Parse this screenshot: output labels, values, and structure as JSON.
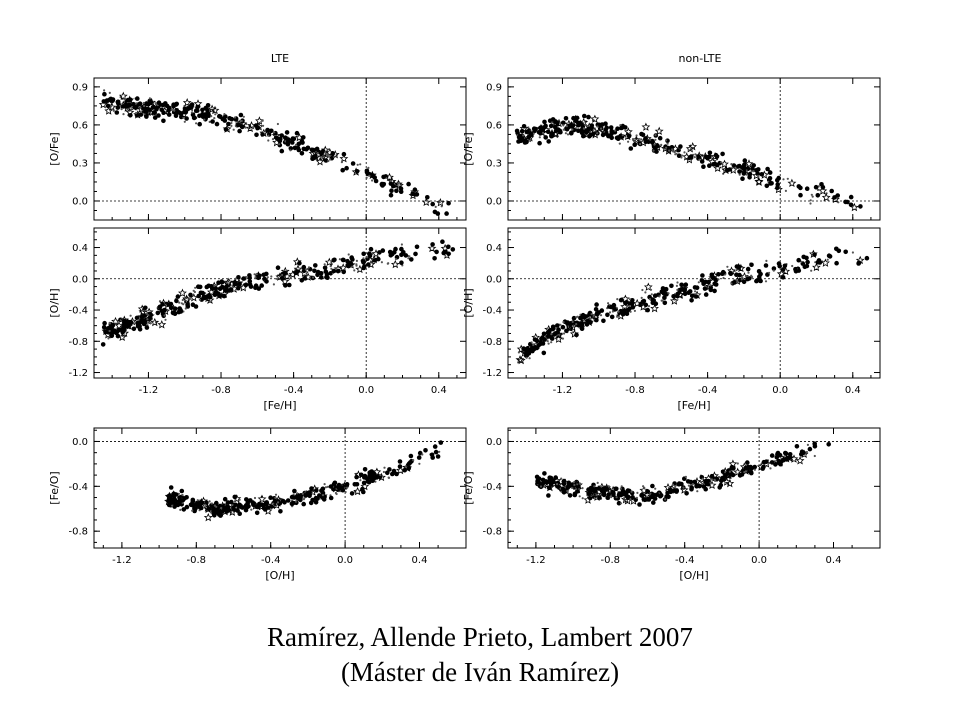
{
  "caption": {
    "line1": "Ramírez, Allende Prieto, Lambert 2007",
    "line2": "(Máster de Iván Ramírez)"
  },
  "columns": [
    "LTE",
    "non-LTE"
  ],
  "chart_data": [
    {
      "type": "scatter",
      "column": "LTE",
      "xlabel": "",
      "ylabel": "[O/Fe]",
      "xlim": [
        -1.5,
        0.55
      ],
      "ylim": [
        -0.15,
        0.97
      ],
      "xticks": [],
      "yticks": [
        "0.0",
        "0.3",
        "0.6",
        "0.9"
      ],
      "reference_lines": {
        "x": 0.0,
        "y": 0.0
      },
      "trend": {
        "x": [
          -1.45,
          -1.2,
          -1.0,
          -0.8,
          -0.6,
          -0.4,
          -0.2,
          0.0,
          0.2,
          0.4,
          0.5
        ],
        "y": [
          0.78,
          0.74,
          0.71,
          0.66,
          0.58,
          0.45,
          0.34,
          0.22,
          0.1,
          -0.05,
          -0.12
        ]
      }
    },
    {
      "type": "scatter",
      "column": "LTE",
      "xlabel": "[Fe/H]",
      "ylabel": "[O/H]",
      "xlim": [
        -1.5,
        0.55
      ],
      "ylim": [
        -1.27,
        0.65
      ],
      "xticks": [
        "-1.2",
        "-0.8",
        "-0.4",
        "0.0",
        "0.4"
      ],
      "yticks": [
        "-1.2",
        "-0.8",
        "-0.4",
        "0.0",
        "0.4"
      ],
      "reference_lines": {
        "x": 0.0,
        "y": 0.0
      },
      "trend": {
        "x": [
          -1.45,
          -1.2,
          -1.0,
          -0.8,
          -0.6,
          -0.4,
          -0.2,
          0.0,
          0.2,
          0.4,
          0.5
        ],
        "y": [
          -0.68,
          -0.5,
          -0.3,
          -0.12,
          -0.02,
          0.06,
          0.14,
          0.22,
          0.3,
          0.35,
          0.38
        ]
      }
    },
    {
      "type": "scatter",
      "column": "LTE",
      "xlabel": "[O/H]",
      "ylabel": "[Fe/O]",
      "xlim": [
        -1.35,
        0.65
      ],
      "ylim": [
        -0.95,
        0.12
      ],
      "xticks": [
        "-1.2",
        "-0.8",
        "-0.4",
        "0.0",
        "0.4"
      ],
      "yticks": [
        "-0.8",
        "-0.4",
        "0.0"
      ],
      "reference_lines": {
        "x": 0.0,
        "y": 0.0
      },
      "trend": {
        "x": [
          -0.95,
          -0.7,
          -0.4,
          -0.2,
          0.0,
          0.2,
          0.4,
          0.55
        ],
        "y": [
          -0.5,
          -0.6,
          -0.55,
          -0.48,
          -0.4,
          -0.3,
          -0.15,
          -0.05
        ]
      }
    },
    {
      "type": "scatter",
      "column": "non-LTE",
      "xlabel": "",
      "ylabel": "[O/Fe]",
      "xlim": [
        -1.5,
        0.55
      ],
      "ylim": [
        -0.15,
        0.97
      ],
      "xticks": [],
      "yticks": [
        "0.0",
        "0.3",
        "0.6",
        "0.9"
      ],
      "reference_lines": {
        "x": 0.0,
        "y": 0.0
      },
      "trend": {
        "x": [
          -1.45,
          -1.2,
          -1.0,
          -0.8,
          -0.6,
          -0.4,
          -0.2,
          0.0,
          0.2,
          0.4,
          0.5
        ],
        "y": [
          0.5,
          0.6,
          0.58,
          0.5,
          0.42,
          0.32,
          0.24,
          0.14,
          0.06,
          -0.02,
          -0.08
        ]
      }
    },
    {
      "type": "scatter",
      "column": "non-LTE",
      "xlabel": "[Fe/H]",
      "ylabel": "[O/H]",
      "xlim": [
        -1.5,
        0.55
      ],
      "ylim": [
        -1.27,
        0.65
      ],
      "xticks": [
        "-1.2",
        "-0.8",
        "-0.4",
        "0.0",
        "0.4"
      ],
      "yticks": [
        "-1.2",
        "-0.8",
        "-0.4",
        "0.0",
        "0.4"
      ],
      "reference_lines": {
        "x": 0.0,
        "y": 0.0
      },
      "trend": {
        "x": [
          -1.45,
          -1.2,
          -1.0,
          -0.8,
          -0.6,
          -0.4,
          -0.2,
          0.0,
          0.2,
          0.4,
          0.5
        ],
        "y": [
          -1.0,
          -0.65,
          -0.45,
          -0.3,
          -0.18,
          -0.06,
          0.04,
          0.14,
          0.22,
          0.3,
          0.34
        ]
      }
    },
    {
      "type": "scatter",
      "column": "non-LTE",
      "xlabel": "[O/H]",
      "ylabel": "[Fe/O]",
      "xlim": [
        -1.35,
        0.65
      ],
      "ylim": [
        -0.95,
        0.12
      ],
      "xticks": [
        "-1.2",
        "-0.8",
        "-0.4",
        "0.0",
        "0.4"
      ],
      "yticks": [
        "-0.8",
        "-0.4",
        "0.0"
      ],
      "reference_lines": {
        "x": 0.0,
        "y": 0.0
      },
      "trend": {
        "x": [
          -1.2,
          -0.9,
          -0.6,
          -0.4,
          -0.2,
          0.0,
          0.2,
          0.4
        ],
        "y": [
          -0.35,
          -0.45,
          -0.5,
          -0.4,
          -0.32,
          -0.22,
          -0.12,
          0.0
        ]
      }
    }
  ]
}
